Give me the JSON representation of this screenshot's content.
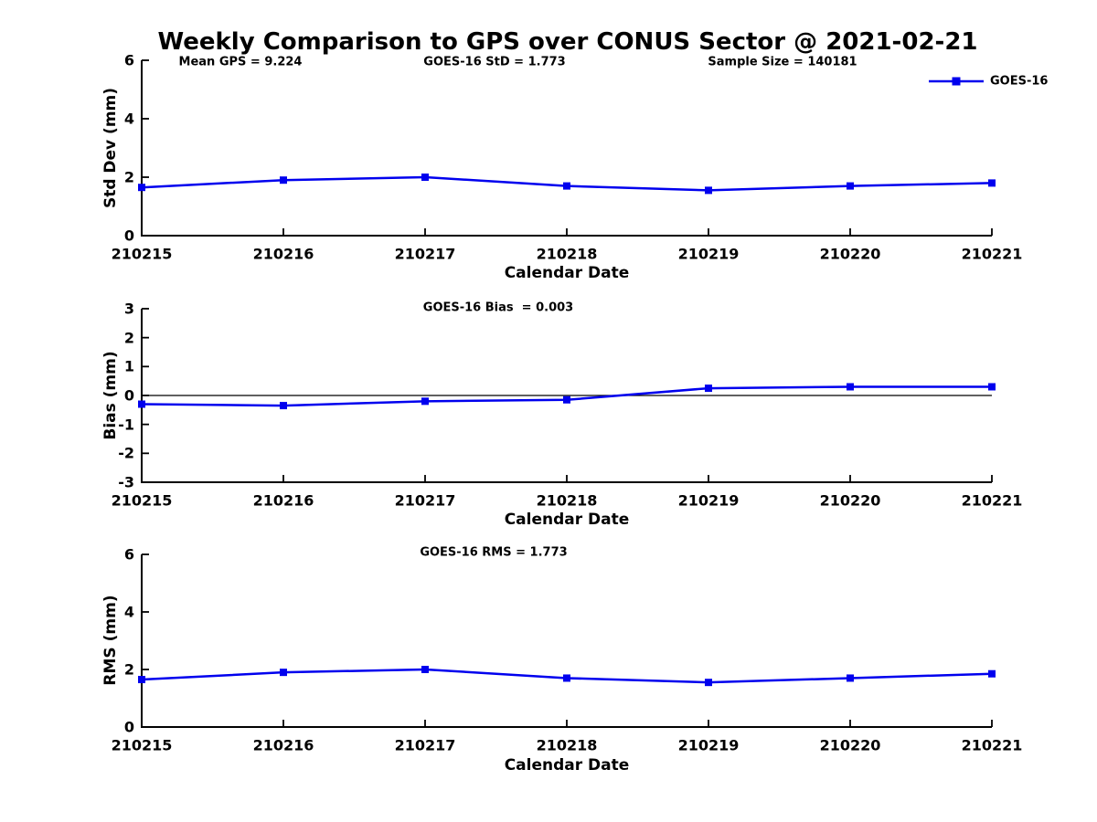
{
  "figure_title": "Weekly Comparison to GPS over CONUS Sector @ 2021-02-21",
  "colors": {
    "background": "#FFFFFF",
    "axis": "#000000",
    "text": "#000000",
    "series_line": "#0000EE"
  },
  "legend": {
    "label": "GOES-16",
    "position": "top-right",
    "marker": "filled-square",
    "color": "#0000EE"
  },
  "chart_data": [
    {
      "type": "line",
      "annotations": [
        "Mean GPS = 9.224",
        "GOES-16 StD = 1.773",
        "Sample Size = 140181"
      ],
      "categories": [
        "210215",
        "210216",
        "210217",
        "210218",
        "210219",
        "210220",
        "210221"
      ],
      "series": [
        {
          "name": "GOES-16",
          "values": [
            1.65,
            1.9,
            2.0,
            1.7,
            1.55,
            1.7,
            1.8
          ]
        }
      ],
      "xlabel": "Calendar Date",
      "ylabel": "Std Dev (mm)",
      "ylim": [
        0,
        6
      ],
      "yticks": [
        0,
        2,
        4,
        6
      ],
      "grid": false,
      "zero_line": false,
      "legend_position": "top-right"
    },
    {
      "type": "line",
      "annotations": [
        "GOES-16 Bias  = 0.003"
      ],
      "categories": [
        "210215",
        "210216",
        "210217",
        "210218",
        "210219",
        "210220",
        "210221"
      ],
      "series": [
        {
          "name": "GOES-16",
          "values": [
            -0.3,
            -0.35,
            -0.2,
            -0.15,
            0.25,
            0.3,
            0.3
          ]
        }
      ],
      "xlabel": "Calendar Date",
      "ylabel": "Bias (mm)",
      "ylim": [
        -3,
        3
      ],
      "yticks": [
        -3,
        -2,
        -1,
        0,
        1,
        2,
        3
      ],
      "grid": false,
      "zero_line": true,
      "legend_position": "none"
    },
    {
      "type": "line",
      "annotations": [
        "GOES-16 RMS = 1.773"
      ],
      "categories": [
        "210215",
        "210216",
        "210217",
        "210218",
        "210219",
        "210220",
        "210221"
      ],
      "series": [
        {
          "name": "GOES-16",
          "values": [
            1.65,
            1.9,
            2.0,
            1.7,
            1.55,
            1.7,
            1.85
          ]
        }
      ],
      "xlabel": "Calendar Date",
      "ylabel": "RMS (mm)",
      "ylim": [
        0,
        6
      ],
      "yticks": [
        0,
        2,
        4,
        6
      ],
      "grid": false,
      "zero_line": false,
      "legend_position": "none"
    }
  ]
}
